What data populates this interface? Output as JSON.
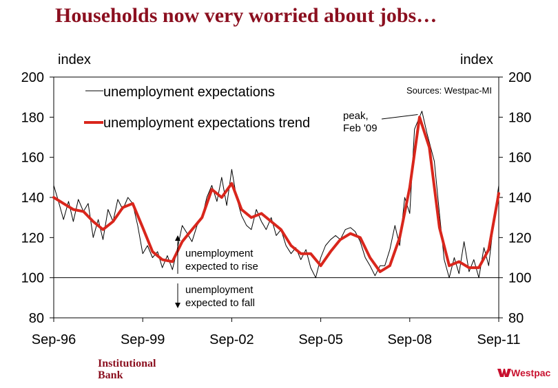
{
  "header": {
    "title": "Households now very worried about jobs…"
  },
  "axes": {
    "left_unit": "index",
    "right_unit": "index"
  },
  "footer": {
    "institutional_bank": "Institutional\nBank",
    "westpac": "Westpac"
  },
  "colors": {
    "title": "#8b0f1f",
    "trend": "#d9261c",
    "raw": "#000000",
    "brand": "#c8102e"
  },
  "chart_data": {
    "type": "line",
    "title": "Households now very worried about jobs…",
    "ylabel": "index",
    "ylabel_right": "index",
    "ylim": [
      80,
      200
    ],
    "yticks": [
      80,
      100,
      120,
      140,
      160,
      180,
      200
    ],
    "xtick_labels": [
      "Sep-96",
      "Sep-99",
      "Sep-02",
      "Sep-05",
      "Sep-08",
      "Sep-11"
    ],
    "xlim": [
      1996.67,
      2011.67
    ],
    "grid": false,
    "legend_position": "top-left",
    "reference_line": 100,
    "source": "Sources: Westpac-MI",
    "annotations": [
      {
        "text": "peak,\nFeb '09",
        "x": 2009.08,
        "y": 182
      },
      {
        "text": "unemployment\nexpected to rise",
        "arrow": "up"
      },
      {
        "text": "unemployment\nexpected to fall",
        "arrow": "down"
      }
    ],
    "series": [
      {
        "name": "unemployment expectations",
        "style": "thin",
        "points": [
          [
            1996.67,
            146
          ],
          [
            1996.83,
            138
          ],
          [
            1997.0,
            129
          ],
          [
            1997.17,
            138
          ],
          [
            1997.33,
            128
          ],
          [
            1997.5,
            139
          ],
          [
            1997.67,
            133
          ],
          [
            1997.83,
            137
          ],
          [
            1998.0,
            120
          ],
          [
            1998.17,
            129
          ],
          [
            1998.33,
            119
          ],
          [
            1998.5,
            134
          ],
          [
            1998.67,
            128
          ],
          [
            1998.83,
            139
          ],
          [
            1999.0,
            134
          ],
          [
            1999.17,
            140
          ],
          [
            1999.33,
            137
          ],
          [
            1999.5,
            126
          ],
          [
            1999.67,
            112
          ],
          [
            1999.83,
            116
          ],
          [
            2000.0,
            110
          ],
          [
            2000.17,
            113
          ],
          [
            2000.33,
            105
          ],
          [
            2000.5,
            111
          ],
          [
            2000.67,
            104
          ],
          [
            2000.83,
            114
          ],
          [
            2001.0,
            126
          ],
          [
            2001.17,
            122
          ],
          [
            2001.33,
            118
          ],
          [
            2001.5,
            126
          ],
          [
            2001.67,
            130
          ],
          [
            2001.83,
            140
          ],
          [
            2002.0,
            146
          ],
          [
            2002.17,
            138
          ],
          [
            2002.33,
            150
          ],
          [
            2002.5,
            136
          ],
          [
            2002.67,
            154
          ],
          [
            2002.83,
            140
          ],
          [
            2003.0,
            131
          ],
          [
            2003.17,
            126
          ],
          [
            2003.33,
            124
          ],
          [
            2003.5,
            134
          ],
          [
            2003.67,
            128
          ],
          [
            2003.83,
            124
          ],
          [
            2004.0,
            130
          ],
          [
            2004.17,
            121
          ],
          [
            2004.33,
            124
          ],
          [
            2004.5,
            116
          ],
          [
            2004.67,
            112
          ],
          [
            2004.83,
            115
          ],
          [
            2005.0,
            109
          ],
          [
            2005.17,
            114
          ],
          [
            2005.33,
            105
          ],
          [
            2005.5,
            100
          ],
          [
            2005.67,
            110
          ],
          [
            2005.83,
            116
          ],
          [
            2006.0,
            119
          ],
          [
            2006.17,
            121
          ],
          [
            2006.33,
            119
          ],
          [
            2006.5,
            124
          ],
          [
            2006.67,
            125
          ],
          [
            2006.83,
            123
          ],
          [
            2007.0,
            118
          ],
          [
            2007.17,
            110
          ],
          [
            2007.33,
            106
          ],
          [
            2007.5,
            101
          ],
          [
            2007.67,
            106
          ],
          [
            2007.83,
            106
          ],
          [
            2008.0,
            114
          ],
          [
            2008.17,
            126
          ],
          [
            2008.33,
            116
          ],
          [
            2008.5,
            140
          ],
          [
            2008.67,
            132
          ],
          [
            2008.83,
            174
          ],
          [
            2009.08,
            183
          ],
          [
            2009.25,
            172
          ],
          [
            2009.5,
            158
          ],
          [
            2009.67,
            132
          ],
          [
            2009.83,
            109
          ],
          [
            2010.0,
            100
          ],
          [
            2010.17,
            110
          ],
          [
            2010.33,
            102
          ],
          [
            2010.5,
            118
          ],
          [
            2010.67,
            103
          ],
          [
            2010.83,
            109
          ],
          [
            2011.0,
            100
          ],
          [
            2011.17,
            115
          ],
          [
            2011.33,
            106
          ],
          [
            2011.5,
            128
          ],
          [
            2011.67,
            146
          ]
        ]
      },
      {
        "name": "unemployment expectations trend",
        "style": "thick",
        "points": [
          [
            1996.67,
            140
          ],
          [
            1997.0,
            137
          ],
          [
            1997.33,
            134
          ],
          [
            1997.67,
            133
          ],
          [
            1998.0,
            128
          ],
          [
            1998.33,
            124
          ],
          [
            1998.67,
            128
          ],
          [
            1999.0,
            135
          ],
          [
            1999.33,
            137
          ],
          [
            1999.67,
            125
          ],
          [
            2000.0,
            113
          ],
          [
            2000.33,
            109
          ],
          [
            2000.67,
            108
          ],
          [
            2001.0,
            118
          ],
          [
            2001.33,
            124
          ],
          [
            2001.67,
            130
          ],
          [
            2002.0,
            144
          ],
          [
            2002.33,
            140
          ],
          [
            2002.67,
            147
          ],
          [
            2003.0,
            134
          ],
          [
            2003.33,
            130
          ],
          [
            2003.67,
            132
          ],
          [
            2004.0,
            128
          ],
          [
            2004.33,
            124
          ],
          [
            2004.67,
            116
          ],
          [
            2005.0,
            112
          ],
          [
            2005.33,
            112
          ],
          [
            2005.67,
            106
          ],
          [
            2006.0,
            113
          ],
          [
            2006.33,
            119
          ],
          [
            2006.67,
            122
          ],
          [
            2007.0,
            120
          ],
          [
            2007.33,
            110
          ],
          [
            2007.67,
            103
          ],
          [
            2008.0,
            106
          ],
          [
            2008.33,
            120
          ],
          [
            2008.67,
            145
          ],
          [
            2009.0,
            180
          ],
          [
            2009.33,
            165
          ],
          [
            2009.67,
            125
          ],
          [
            2010.0,
            106
          ],
          [
            2010.33,
            108
          ],
          [
            2010.67,
            105
          ],
          [
            2011.0,
            105
          ],
          [
            2011.33,
            114
          ],
          [
            2011.67,
            142
          ]
        ]
      }
    ]
  }
}
